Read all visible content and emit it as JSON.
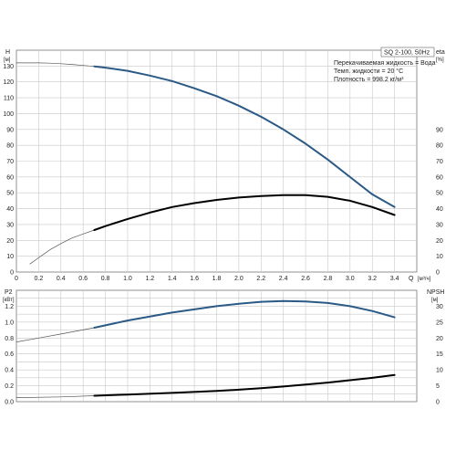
{
  "chart_data": [
    {
      "type": "line",
      "panel": "top",
      "title": "SQ 2-100, 50Hz",
      "notes": [
        "Перекачиваемая жидкость = Вода",
        "Темп. жидкости = 20 °C",
        "Плотность = 998.2 кг/м³"
      ],
      "y_left_label": "H",
      "y_left_unit": "[м]",
      "y_right_label": "eta",
      "y_right_unit": "[%]",
      "x_label": "Q",
      "x_unit": "[м³/ч]",
      "x_ticks": [
        "0",
        "0.2",
        "0.4",
        "0.6",
        "0.8",
        "1.0",
        "1.2",
        "1.4",
        "1.6",
        "1.8",
        "2.0",
        "2.2",
        "2.4",
        "2.6",
        "2.8",
        "3.0",
        "3.2",
        "3.4"
      ],
      "y_left_ticks": [
        "0",
        "10",
        "20",
        "30",
        "40",
        "50",
        "60",
        "70",
        "80",
        "90",
        "100",
        "110",
        "120",
        "130"
      ],
      "y_right_ticks": [
        "0",
        "10",
        "20",
        "30",
        "40",
        "50",
        "60",
        "70",
        "80",
        "90"
      ],
      "xlim": [
        0,
        3.6
      ],
      "ylim": [
        0,
        140
      ],
      "series": [
        {
          "axis": "left",
          "color": "#2b5a86",
          "x": [
            0,
            0.1,
            0.2,
            0.3,
            0.4,
            0.5,
            0.6,
            0.7,
            0.8,
            1.0,
            1.2,
            1.4,
            1.6,
            1.8,
            2.0,
            2.2,
            2.4,
            2.6,
            2.8,
            3.0,
            3.2,
            3.4
          ],
          "y": [
            132,
            132,
            132,
            131.8,
            131.5,
            131,
            130.4,
            129.8,
            129,
            127,
            124,
            120.5,
            116,
            111,
            105,
            98,
            90,
            81,
            71,
            60,
            49,
            41
          ],
          "solid_from": 0.7
        },
        {
          "axis": "right",
          "color": "#000000",
          "x": [
            0.12,
            0.2,
            0.3,
            0.4,
            0.5,
            0.6,
            0.7,
            0.8,
            1.0,
            1.2,
            1.4,
            1.6,
            1.8,
            2.0,
            2.2,
            2.4,
            2.6,
            2.8,
            3.0,
            3.2,
            3.4
          ],
          "y": [
            5,
            9,
            14,
            18,
            21.5,
            24,
            26.5,
            29,
            33.5,
            37.5,
            41,
            43.5,
            45.5,
            47,
            48,
            48.5,
            48.5,
            47.5,
            45,
            41,
            36
          ],
          "solid_from": 0.7
        }
      ]
    },
    {
      "type": "line",
      "panel": "bottom",
      "y_left_label": "P2",
      "y_left_unit": "[кВт]",
      "y_right_label": "NPSH",
      "y_right_unit": "[м]",
      "y_left_ticks": [
        "0.0",
        "0.2",
        "0.4",
        "0.6",
        "0.8",
        "1.0",
        "1.2"
      ],
      "y_right_ticks": [
        "0",
        "5",
        "10",
        "15",
        "20",
        "25",
        "30"
      ],
      "xlim": [
        0,
        3.6
      ],
      "ylim": [
        0,
        1.4
      ],
      "series": [
        {
          "axis": "left",
          "color": "#2b5a86",
          "x": [
            0,
            0.2,
            0.4,
            0.7,
            1.0,
            1.4,
            1.8,
            2.0,
            2.2,
            2.4,
            2.6,
            2.8,
            3.0,
            3.2,
            3.4
          ],
          "y": [
            0.75,
            0.8,
            0.85,
            0.93,
            1.02,
            1.12,
            1.2,
            1.23,
            1.255,
            1.265,
            1.26,
            1.24,
            1.2,
            1.14,
            1.06
          ],
          "solid_from": 0.7
        },
        {
          "axis": "left",
          "color": "#000000",
          "x": [
            0,
            0.4,
            0.7,
            1.0,
            1.4,
            1.8,
            2.0,
            2.2,
            2.4,
            2.6,
            2.8,
            3.0,
            3.2,
            3.4
          ],
          "y": [
            0.05,
            0.06,
            0.075,
            0.09,
            0.11,
            0.135,
            0.15,
            0.17,
            0.19,
            0.215,
            0.24,
            0.27,
            0.3,
            0.335
          ],
          "solid_from": 0.7
        }
      ]
    }
  ]
}
